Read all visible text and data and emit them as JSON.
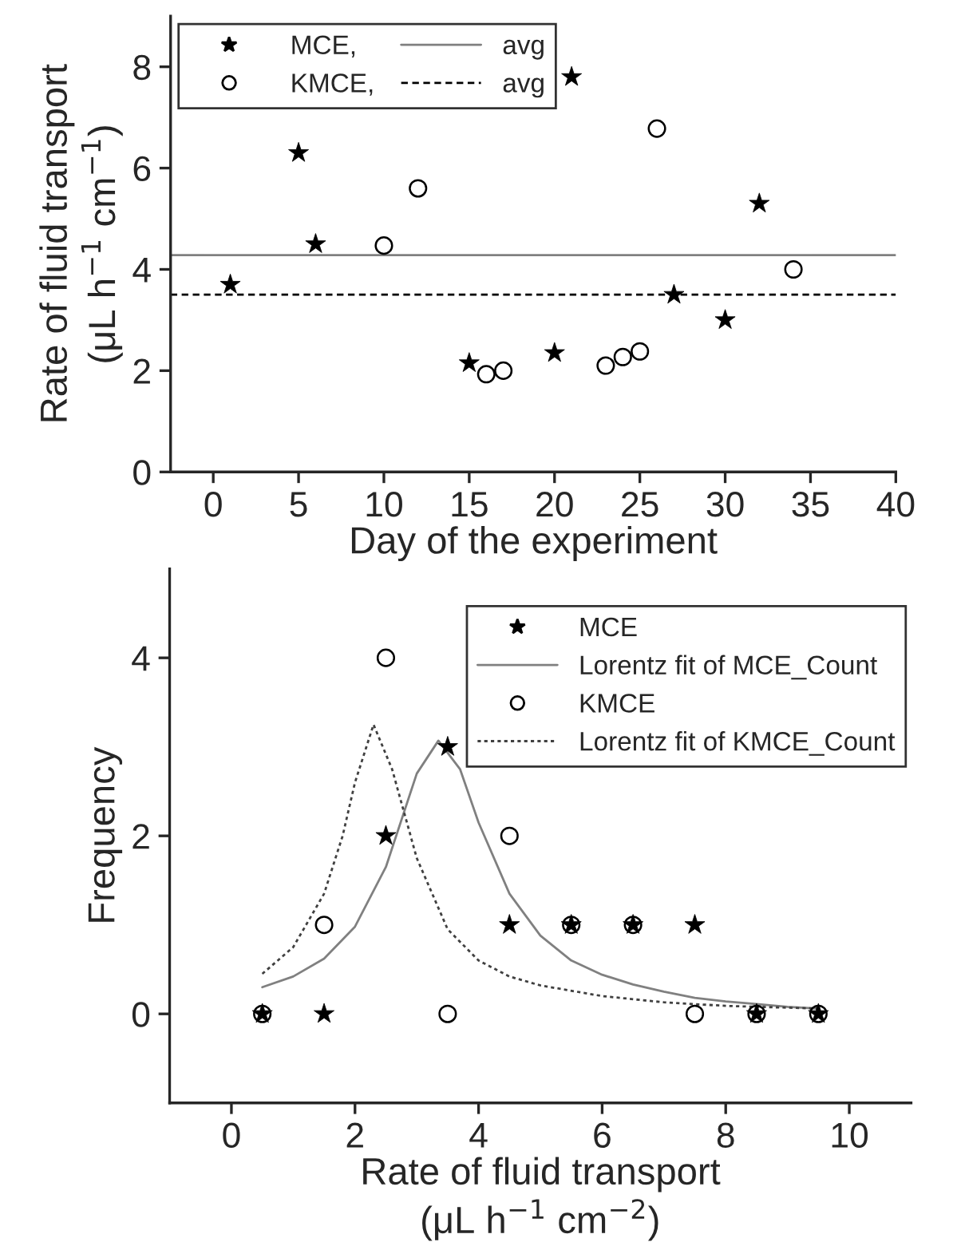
{
  "chart_data": [
    {
      "type": "scatter",
      "xlabel": "Day of the experiment",
      "ylabel": "Rate of fluid transport\n(μL h$^{−1}$ cm$^{−1}$)",
      "xlim": [
        -2.5,
        40
      ],
      "xticks": [
        0,
        5,
        10,
        15,
        20,
        25,
        30,
        35,
        40
      ],
      "ylim": [
        0,
        9
      ],
      "yticks": [
        0,
        2,
        4,
        6,
        8
      ],
      "legend": "top left",
      "grid": false,
      "series": [
        {
          "name": "MCE,",
          "marker": "star",
          "color": "#000000",
          "x": [
            1,
            5,
            6,
            15,
            20,
            21,
            27,
            30,
            32
          ],
          "values": [
            3.7,
            6.3,
            4.5,
            2.15,
            2.35,
            7.8,
            3.5,
            3.0,
            5.3
          ]
        },
        {
          "name": "KMCE,",
          "marker": "circle",
          "color": "#000000",
          "x": [
            10,
            12,
            16,
            17,
            23,
            24,
            25,
            26,
            34
          ],
          "values": [
            4.47,
            5.6,
            1.93,
            2.0,
            2.1,
            2.27,
            2.38,
            6.78,
            4.0
          ]
        }
      ],
      "ref_lines": [
        {
          "axis": "y",
          "value": 4.28,
          "label": "avg",
          "color": "#808080",
          "line_style": "solid"
        },
        {
          "axis": "y",
          "value": 3.5,
          "label": "avg",
          "color": "#000000",
          "line_style": "dashed"
        }
      ]
    },
    {
      "type": "scatter",
      "xlabel": "Rate of fluid transport\n(μL h$^{−1}$ cm$^{−2}$)",
      "ylabel": "Frequency",
      "xlim": [
        -1,
        11
      ],
      "xticks": [
        0,
        2,
        4,
        6,
        8,
        10
      ],
      "ylim": [
        -1,
        5
      ],
      "yticks": [
        0,
        2,
        4
      ],
      "legend": "top right",
      "grid": false,
      "series": [
        {
          "name": "MCE",
          "marker": "star",
          "color": "#000000",
          "x": [
            0.5,
            1.5,
            2.5,
            3.5,
            4.5,
            5.5,
            6.5,
            7.5,
            8.5,
            9.5
          ],
          "values": [
            0,
            0,
            2,
            3,
            1,
            1,
            1,
            1,
            0,
            0
          ]
        },
        {
          "name": "Lorentz fit of MCE_Count",
          "type": "line",
          "marker": "none",
          "line_style": "solid",
          "color": "#808080",
          "x": [
            0.5,
            1.0,
            1.5,
            2.0,
            2.5,
            3.0,
            3.35,
            3.7,
            4.0,
            4.5,
            5.0,
            5.5,
            6.0,
            6.5,
            7.0,
            7.5,
            8.0,
            8.5,
            9.0,
            9.5
          ],
          "values": [
            0.3,
            0.42,
            0.62,
            0.98,
            1.65,
            2.7,
            3.07,
            2.75,
            2.15,
            1.35,
            0.88,
            0.6,
            0.44,
            0.33,
            0.25,
            0.18,
            0.14,
            0.11,
            0.08,
            0.06
          ]
        },
        {
          "name": "KMCE",
          "marker": "circle",
          "color": "#000000",
          "x": [
            0.5,
            1.5,
            2.5,
            3.5,
            4.5,
            5.5,
            6.5,
            7.5,
            8.5,
            9.5
          ],
          "values": [
            0,
            1,
            4,
            0,
            2,
            1,
            1,
            0,
            0,
            0
          ]
        },
        {
          "name": "Lorentz fit of KMCE_Count",
          "type": "line",
          "marker": "none",
          "line_style": "dotted",
          "color": "#404040",
          "x": [
            0.5,
            1.0,
            1.5,
            1.8,
            2.0,
            2.3,
            2.6,
            3.0,
            3.5,
            4.0,
            4.5,
            5.0,
            6.0,
            7.0,
            8.0,
            9.0,
            9.5
          ],
          "values": [
            0.45,
            0.75,
            1.35,
            2.0,
            2.6,
            3.25,
            2.75,
            1.75,
            0.95,
            0.6,
            0.42,
            0.32,
            0.2,
            0.13,
            0.09,
            0.07,
            0.06
          ]
        }
      ]
    }
  ]
}
